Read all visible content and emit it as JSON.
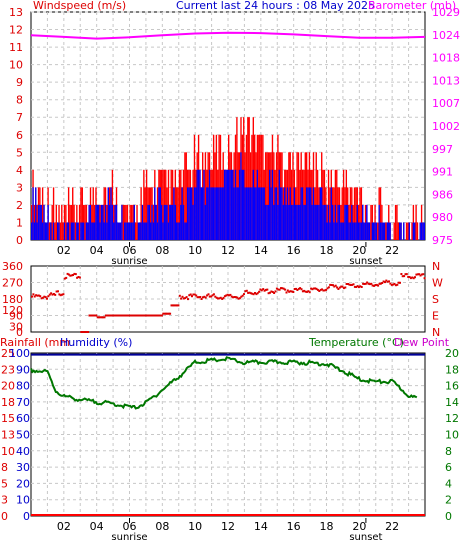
{
  "header": {
    "left_label": "Windspeed (m/s)",
    "center_label": "Current last 24 hours : 08 May 2025",
    "right_label": "Barometer (mb)"
  },
  "colors": {
    "wind_gust": "#ff0000",
    "wind_avg": "#0000ff",
    "barometer": "#ff00ff",
    "direction": "#dd0000",
    "rainfall": "#ff0000",
    "humidity": "#000099",
    "temperature": "#007700",
    "dewpoint": "#cc00cc",
    "grid": "#c8c8c8",
    "frame": "#000000"
  },
  "x_ticks": [
    "02",
    "04",
    "06",
    "08",
    "10",
    "12",
    "14",
    "16",
    "18",
    "20",
    "22"
  ],
  "sun_labels": {
    "sunrise": "sunrise",
    "sunset": "sunset",
    "sunrise_hour": 6.0,
    "sunset_hour": 20.4
  },
  "panel1": {
    "wind_ticks": [
      "0",
      "1",
      "2",
      "3",
      "4",
      "5",
      "6",
      "7",
      "8",
      "9",
      "10",
      "11",
      "12",
      "13"
    ],
    "baro_ticks": [
      "975",
      "980",
      "986",
      "991",
      "997",
      "1002",
      "1007",
      "1013",
      "1018",
      "1024",
      "1029"
    ]
  },
  "panel2": {
    "deg_ticks": [
      "0",
      "90",
      "180",
      "270",
      "360"
    ],
    "extra_ticks": [
      "30",
      "120"
    ],
    "compass_ticks": [
      "N",
      "E",
      "S",
      "W",
      "N"
    ]
  },
  "panel3": {
    "left_label": "Rainfall (mm",
    "humidity_label": "Humidity (%)",
    "temp_label": "Temperature (°C)",
    "dew_label": "Dew Point",
    "hum_ticks": [
      "0",
      "10",
      "20",
      "30",
      "40",
      "50",
      "60",
      "70",
      "80",
      "90",
      "100"
    ],
    "rain_ticks": [
      "0",
      "3",
      "5",
      "8",
      "10",
      "13",
      "15",
      "18",
      "20",
      "23",
      "25"
    ],
    "temp_ticks": [
      "0",
      "2",
      "4",
      "6",
      "8",
      "10",
      "12",
      "14",
      "16",
      "18",
      "20"
    ]
  },
  "chart_data": [
    {
      "type": "line",
      "title": "Current last 24 hours : 08 May 2025",
      "ylabel": "Windspeed (m/s)",
      "y2label": "Barometer (mb)",
      "xlim": [
        0,
        24
      ],
      "ylim": [
        0,
        13
      ],
      "y2lim": [
        975,
        1029
      ],
      "series": [
        {
          "name": "Barometer (mb)",
          "axis": "right",
          "x": [
            0,
            2,
            4,
            6,
            8,
            10,
            12,
            14,
            16,
            18,
            20,
            22,
            24
          ],
          "y": [
            1023.5,
            1023.1,
            1022.7,
            1023.0,
            1023.5,
            1023.9,
            1024.1,
            1024.0,
            1023.7,
            1023.3,
            1022.9,
            1022.9,
            1023.1
          ]
        },
        {
          "name": "gust",
          "axis": "left",
          "color": "red",
          "x": [
            0,
            1,
            2,
            3,
            4,
            5,
            6,
            7,
            8,
            9,
            10,
            11,
            12,
            13,
            14,
            15,
            16,
            17,
            18,
            19,
            20,
            21,
            22,
            23,
            24
          ],
          "y": [
            3.2,
            2.0,
            1.1,
            2.0,
            2.6,
            2.8,
            1.2,
            2.8,
            3.3,
            3.0,
            4.5,
            4.8,
            5.2,
            6.5,
            5.8,
            4.8,
            4.2,
            4.5,
            3.5,
            2.8,
            2.3,
            1.8,
            1.1,
            0.9,
            1.0
          ]
        },
        {
          "name": "average",
          "axis": "left",
          "color": "blue",
          "x": [
            0,
            1,
            2,
            3,
            4,
            5,
            6,
            7,
            8,
            9,
            10,
            11,
            12,
            13,
            14,
            15,
            16,
            17,
            18,
            19,
            20,
            21,
            22,
            23,
            24
          ],
          "y": [
            2.0,
            1.0,
            0.5,
            1.0,
            1.6,
            1.8,
            0.6,
            1.7,
            2.1,
            1.9,
            3.0,
            3.2,
            3.4,
            3.7,
            3.3,
            2.8,
            2.4,
            2.6,
            2.1,
            1.7,
            1.3,
            1.0,
            0.5,
            0.4,
            0.6
          ]
        }
      ]
    },
    {
      "type": "scatter",
      "title": "",
      "ylabel": "",
      "ylim": [
        0,
        360
      ],
      "xlim": [
        0,
        24
      ],
      "series": [
        {
          "name": "direction",
          "color": "red",
          "x": [
            0,
            0.5,
            1,
            1.5,
            2,
            2.5,
            3,
            3.5,
            4,
            4.5,
            5,
            5.5,
            6,
            6.5,
            7,
            7.5,
            8,
            8.5,
            9,
            9.5,
            10,
            10.5,
            11,
            11.5,
            12,
            12.5,
            13,
            13.5,
            14,
            14.5,
            15,
            15.5,
            16,
            16.5,
            17,
            17.5,
            18,
            18.5,
            19,
            19.5,
            20,
            20.5,
            21,
            21.5,
            22,
            22.5,
            23,
            23.5
          ],
          "y": [
            200,
            200,
            205,
            220,
            310,
            310,
            0,
            90,
            80,
            90,
            90,
            90,
            90,
            90,
            90,
            90,
            100,
            145,
            200,
            200,
            200,
            200,
            200,
            200,
            200,
            200,
            220,
            225,
            230,
            230,
            235,
            235,
            235,
            235,
            235,
            240,
            250,
            255,
            260,
            260,
            265,
            265,
            270,
            275,
            270,
            310,
            310,
            310
          ]
        }
      ]
    },
    {
      "type": "line",
      "title": "",
      "ylabel": "Humidity (%)",
      "y2label": "Temperature (°C)",
      "xlim": [
        0,
        24
      ],
      "ylim": [
        0,
        100
      ],
      "y2lim": [
        0,
        20
      ],
      "series": [
        {
          "name": "Humidity (%)",
          "axis": "left",
          "x": [
            0,
            24
          ],
          "y": [
            99,
            99
          ]
        },
        {
          "name": "Rainfall (mm",
          "axis": "left",
          "x": [
            0,
            24
          ],
          "y": [
            0,
            0
          ]
        },
        {
          "name": "Temperature (°C)",
          "axis": "right",
          "x": [
            0,
            1,
            1.5,
            2,
            3,
            4,
            5,
            6,
            6.3,
            7,
            8,
            9,
            10,
            11,
            12,
            13,
            14,
            15,
            16,
            17,
            18,
            19,
            20,
            21,
            22,
            22.5,
            23,
            23.5
          ],
          "y": [
            18.0,
            17.8,
            15.5,
            14.8,
            14.4,
            14.1,
            13.9,
            13.5,
            13.4,
            14.0,
            15.6,
            17.2,
            19.0,
            19.2,
            19.4,
            18.9,
            19.0,
            19.0,
            19.0,
            18.9,
            18.8,
            17.9,
            16.9,
            16.6,
            16.6,
            15.8,
            14.9,
            14.5
          ]
        }
      ]
    }
  ]
}
